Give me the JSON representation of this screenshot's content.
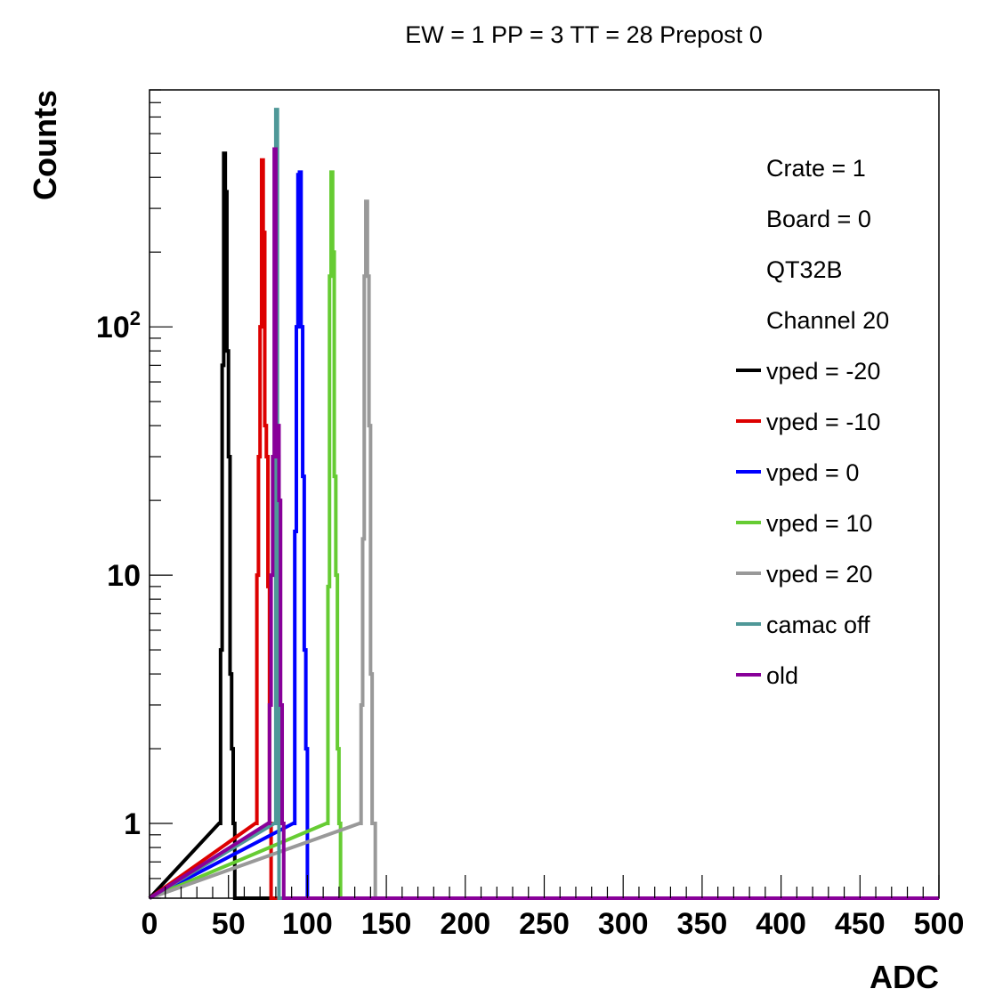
{
  "chart_data": {
    "type": "line",
    "title": "EW = 1 PP = 3 TT = 28 Prepost 0",
    "xlabel": "ADC",
    "ylabel": "Counts",
    "xlim": [
      0,
      500
    ],
    "ylim": [
      0.5,
      900
    ],
    "y_scale": "log",
    "grid": false,
    "legend_position": "top-right",
    "x_ticks": [
      0,
      50,
      100,
      150,
      200,
      250,
      300,
      350,
      400,
      450,
      500
    ],
    "y_ticks": [
      {
        "value": 1,
        "label": "1"
      },
      {
        "value": 10,
        "label": "10"
      },
      {
        "value": 100,
        "label": "10",
        "exponent": "2"
      }
    ],
    "legend_text": [
      "Crate = 1",
      "Board = 0",
      "QT32B",
      "Channel 20"
    ],
    "series": [
      {
        "name": "vped = -20",
        "color": "#000000",
        "x": [
          44,
          45,
          46,
          47,
          48,
          49,
          50,
          51,
          52,
          53
        ],
        "y": [
          1,
          5,
          70,
          500,
          350,
          80,
          30,
          4,
          2,
          1
        ]
      },
      {
        "name": "vped = -10",
        "color": "#dd0000",
        "x": [
          67,
          68,
          69,
          70,
          71,
          72,
          73,
          74,
          75,
          76
        ],
        "y": [
          1,
          10,
          30,
          100,
          470,
          240,
          40,
          30,
          9,
          1
        ]
      },
      {
        "name": "vped = 0",
        "color": "#0000ff",
        "x": [
          91,
          92,
          93,
          94,
          95,
          96,
          97,
          98,
          99
        ],
        "y": [
          1,
          15,
          100,
          410,
          420,
          100,
          25,
          5,
          2
        ]
      },
      {
        "name": "vped = 10",
        "color": "#66cc33",
        "x": [
          112,
          113,
          114,
          115,
          116,
          117,
          118,
          119,
          120
        ],
        "y": [
          1,
          9,
          160,
          420,
          200,
          25,
          10,
          2,
          1
        ]
      },
      {
        "name": "vped = 20",
        "color": "#999999",
        "x": [
          133,
          134,
          135,
          136,
          137,
          138,
          139,
          140,
          141,
          142
        ],
        "y": [
          1,
          3,
          14,
          160,
          320,
          160,
          40,
          4,
          1,
          1
        ]
      },
      {
        "name": "camac off",
        "color": "#4f9898",
        "x": [
          79,
          80,
          81
        ],
        "y": [
          1,
          750,
          30
        ]
      },
      {
        "name": "old",
        "color": "#880099",
        "x": [
          75,
          76,
          77,
          78,
          79,
          80,
          81,
          82,
          83,
          84
        ],
        "y": [
          1,
          3,
          10,
          30,
          520,
          30,
          40,
          20,
          3,
          1
        ]
      }
    ]
  }
}
